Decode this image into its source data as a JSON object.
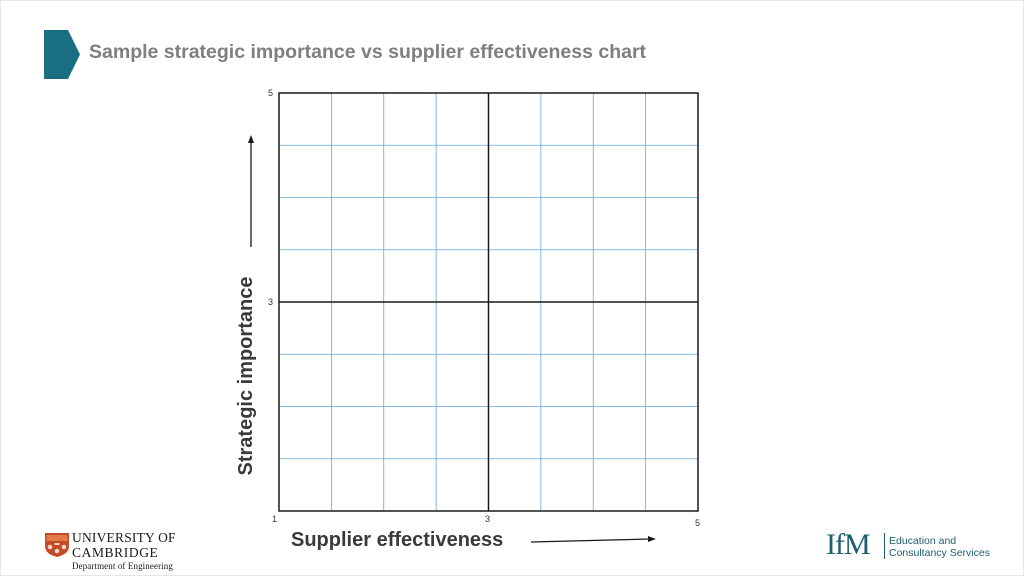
{
  "slide": {
    "title": "Sample strategic importance vs supplier effectiveness chart",
    "accent_color": "#1a6e82"
  },
  "chart_data": {
    "type": "scatter",
    "title": "",
    "xlabel": "Supplier effectiveness",
    "ylabel": "Strategic importance",
    "xlim": [
      1,
      5
    ],
    "ylim": [
      1,
      5
    ],
    "x_ticks": [
      "1",
      "3",
      "5"
    ],
    "y_ticks": [
      "3",
      "5"
    ],
    "grid": true,
    "grid_color": "#5fa8d3",
    "quadrant_divider": {
      "x": 3,
      "y": 3
    },
    "points": []
  },
  "footer": {
    "university_line1": "UNIVERSITY OF",
    "university_line2": "CAMBRIDGE",
    "department": "Department of Engineering",
    "ifm_logo": "IfM",
    "ifm_line1": "Education and",
    "ifm_line2": "Consultancy Services",
    "ifm_color": "#1d5e6e"
  }
}
